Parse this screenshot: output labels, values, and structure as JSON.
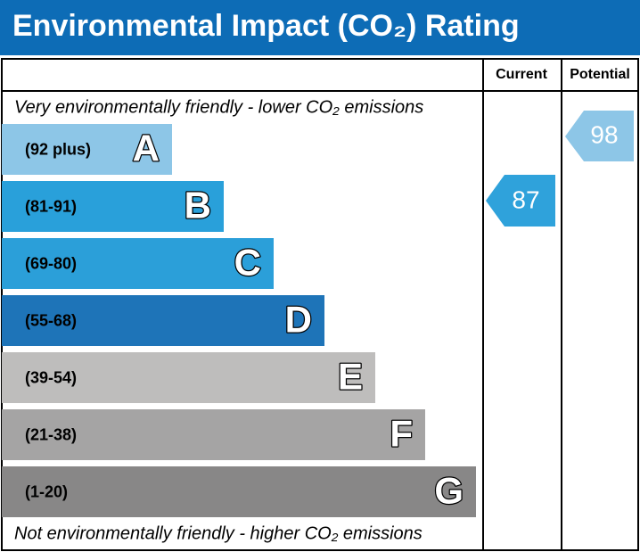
{
  "header": {
    "title": "Environmental Impact (CO₂) Rating"
  },
  "columns": [
    "Current",
    "Potential"
  ],
  "top_note": "Very environmentally friendly - lower CO₂ emissions",
  "bottom_note": "Not environmentally friendly - higher CO₂ emissions",
  "bands": [
    {
      "range": "(92 plus)",
      "letter": "A"
    },
    {
      "range": "(81-91)",
      "letter": "B"
    },
    {
      "range": "(69-80)",
      "letter": "C"
    },
    {
      "range": "(55-68)",
      "letter": "D"
    },
    {
      "range": "(39-54)",
      "letter": "E"
    },
    {
      "range": "(21-38)",
      "letter": "F"
    },
    {
      "range": "(1-20)",
      "letter": "G"
    }
  ],
  "current": 87,
  "potential": 98
}
